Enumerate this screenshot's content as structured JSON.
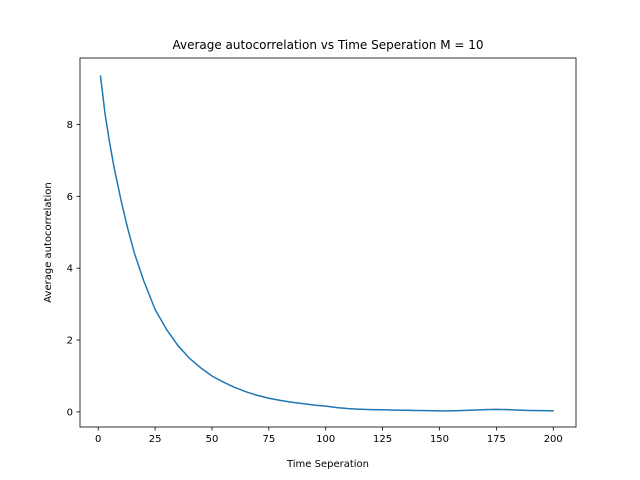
{
  "chart_data": {
    "type": "line",
    "title": "Average autocorrelation vs Time Seperation M = 10",
    "xlabel": "Time Seperation",
    "ylabel": "Average autocorrelation",
    "xlim": [
      -8,
      210
    ],
    "ylim": [
      -0.42,
      9.85
    ],
    "xticks": [
      0,
      25,
      50,
      75,
      100,
      125,
      150,
      175,
      200
    ],
    "yticks": [
      0,
      2,
      4,
      6,
      8
    ],
    "grid": false,
    "legend": "none",
    "series": [
      {
        "color": "#1f77b4",
        "x": [
          1,
          3,
          5,
          7,
          10,
          13,
          16,
          20,
          25,
          30,
          35,
          40,
          45,
          50,
          55,
          60,
          65,
          70,
          75,
          80,
          85,
          90,
          95,
          100,
          105,
          110,
          115,
          120,
          125,
          130,
          135,
          140,
          145,
          150,
          155,
          160,
          165,
          170,
          175,
          180,
          185,
          190,
          195,
          200
        ],
        "y": [
          9.35,
          8.3,
          7.5,
          6.8,
          5.9,
          5.1,
          4.4,
          3.65,
          2.85,
          2.3,
          1.85,
          1.5,
          1.23,
          1.0,
          0.83,
          0.68,
          0.56,
          0.46,
          0.38,
          0.32,
          0.27,
          0.23,
          0.19,
          0.16,
          0.12,
          0.09,
          0.075,
          0.065,
          0.06,
          0.05,
          0.045,
          0.04,
          0.035,
          0.03,
          0.03,
          0.04,
          0.05,
          0.065,
          0.07,
          0.065,
          0.05,
          0.04,
          0.035,
          0.03
        ]
      }
    ]
  }
}
